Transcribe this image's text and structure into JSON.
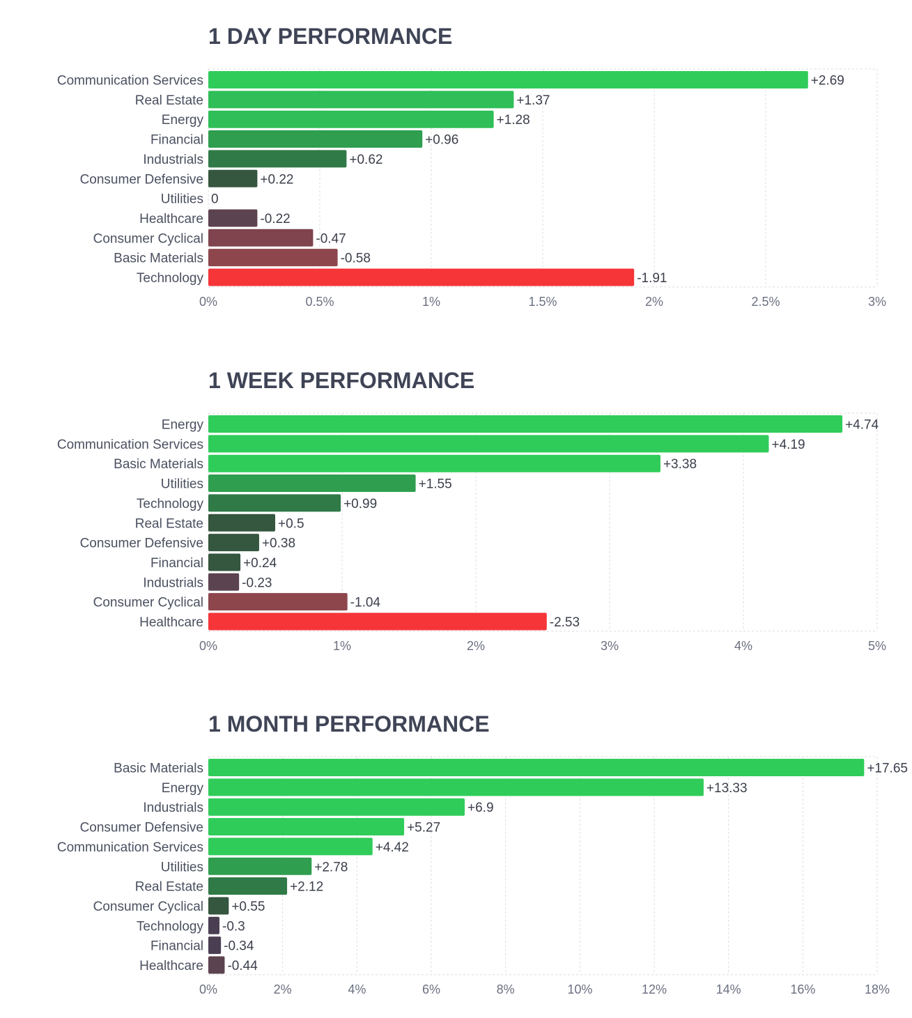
{
  "chart_data": [
    {
      "type": "bar",
      "orientation": "horizontal",
      "title": "1 DAY PERFORMANCE",
      "categories": [
        "Communication Services",
        "Real Estate",
        "Energy",
        "Financial",
        "Industrials",
        "Consumer Defensive",
        "Utilities",
        "Healthcare",
        "Consumer Cyclical",
        "Basic Materials",
        "Technology"
      ],
      "values": [
        2.69,
        1.37,
        1.28,
        0.96,
        0.62,
        0.22,
        0,
        -0.22,
        -0.47,
        -0.58,
        -1.91
      ],
      "value_labels": [
        "+2.69",
        "+1.37",
        "+1.28",
        "+0.96",
        "+0.62",
        "+0.22",
        "0",
        "-0.22",
        "-0.47",
        "-0.58",
        "-1.91"
      ],
      "bar_colors": [
        "#30cc5a",
        "#2fbe57",
        "#2fbe57",
        "#2f9e4f",
        "#307a47",
        "#35563f",
        "#414554",
        "#5c4350",
        "#7f444e",
        "#8e464d",
        "#f63538"
      ],
      "xlim": [
        0,
        3
      ],
      "ticks": [
        0,
        0.5,
        1,
        1.5,
        2,
        2.5,
        3
      ],
      "tick_labels": [
        "0%",
        "0.5%",
        "1%",
        "1.5%",
        "2%",
        "2.5%",
        "3%"
      ],
      "xlabel": "",
      "ylabel": "",
      "grid": true
    },
    {
      "type": "bar",
      "orientation": "horizontal",
      "title": "1 WEEK PERFORMANCE",
      "categories": [
        "Energy",
        "Communication Services",
        "Basic Materials",
        "Utilities",
        "Technology",
        "Real Estate",
        "Consumer Defensive",
        "Financial",
        "Industrials",
        "Consumer Cyclical",
        "Healthcare"
      ],
      "values": [
        4.74,
        4.19,
        3.38,
        1.55,
        0.99,
        0.5,
        0.38,
        0.24,
        -0.23,
        -1.04,
        -2.53
      ],
      "value_labels": [
        "+4.74",
        "+4.19",
        "+3.38",
        "+1.55",
        "+0.99",
        "+0.5",
        "+0.38",
        "+0.24",
        "-0.23",
        "-1.04",
        "-2.53"
      ],
      "bar_colors": [
        "#30cc5a",
        "#30cc5a",
        "#30cc5a",
        "#2f9e4f",
        "#307a47",
        "#35563f",
        "#35563f",
        "#35563f",
        "#5c4350",
        "#8e464d",
        "#f63538"
      ],
      "xlim": [
        0,
        5
      ],
      "ticks": [
        0,
        1,
        2,
        3,
        4,
        5
      ],
      "tick_labels": [
        "0%",
        "1%",
        "2%",
        "3%",
        "4%",
        "5%"
      ],
      "xlabel": "",
      "ylabel": "",
      "grid": true
    },
    {
      "type": "bar",
      "orientation": "horizontal",
      "title": "1 MONTH PERFORMANCE",
      "categories": [
        "Basic Materials",
        "Energy",
        "Industrials",
        "Consumer Defensive",
        "Communication Services",
        "Utilities",
        "Real Estate",
        "Consumer Cyclical",
        "Technology",
        "Financial",
        "Healthcare"
      ],
      "values": [
        17.65,
        13.33,
        6.9,
        5.27,
        4.42,
        2.78,
        2.12,
        0.55,
        -0.3,
        -0.34,
        -0.44
      ],
      "value_labels": [
        "+17.65",
        "+13.33",
        "+6.9",
        "+5.27",
        "+4.42",
        "+2.78",
        "+2.12",
        "+0.55",
        "-0.3",
        "-0.34",
        "-0.44"
      ],
      "bar_colors": [
        "#30cc5a",
        "#30cc5a",
        "#30cc5a",
        "#30cc5a",
        "#30cc5a",
        "#2f9e4f",
        "#307a47",
        "#35563f",
        "#4a3f52",
        "#4a3f52",
        "#5c4350"
      ],
      "xlim": [
        0,
        18
      ],
      "ticks": [
        0,
        2,
        4,
        6,
        8,
        10,
        12,
        14,
        16,
        18
      ],
      "tick_labels": [
        "0%",
        "2%",
        "4%",
        "6%",
        "8%",
        "10%",
        "12%",
        "14%",
        "16%",
        "18%"
      ],
      "xlabel": "",
      "ylabel": "",
      "grid": true
    }
  ]
}
